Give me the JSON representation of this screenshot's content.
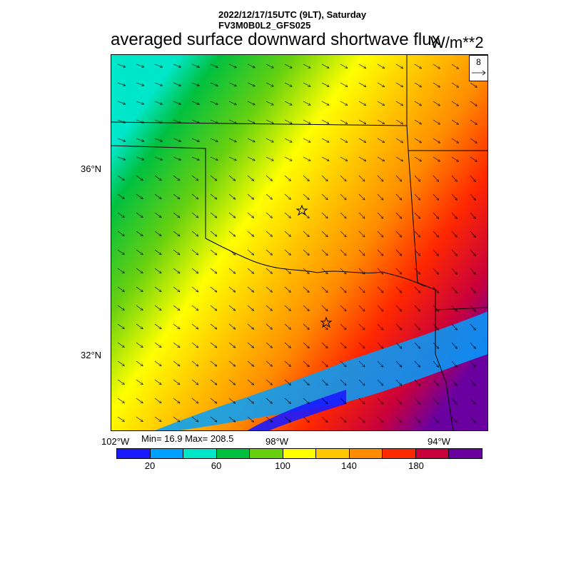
{
  "header": {
    "datetime": "2022/12/17/15UTC (9LT), Saturday",
    "model": "FV3M0B0L2_GFS025",
    "title": "averaged surface downward shortwave flux",
    "units": "W/m**2"
  },
  "map": {
    "lat_labels": [
      "36°N",
      "32°N"
    ],
    "lon_labels": [
      "102°W",
      "98°W",
      "94°W"
    ],
    "stats": "Min= 16.9 Max= 208.5",
    "vector_ref": "8",
    "field_range": {
      "min": 16.9,
      "max": 208.5
    }
  },
  "colorbar": {
    "colors": [
      "#1a1aff",
      "#00a0ff",
      "#00e6c8",
      "#00c040",
      "#66d010",
      "#ffff00",
      "#ffc800",
      "#ff8c00",
      "#ff2800",
      "#c8003c",
      "#6a00a0"
    ],
    "labels": [
      "20",
      "60",
      "100",
      "140",
      "180"
    ]
  }
}
